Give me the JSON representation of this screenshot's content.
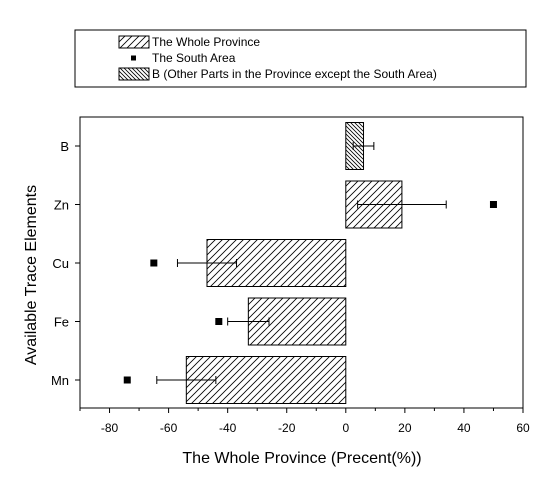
{
  "chart_data": {
    "type": "bar",
    "orientation": "horizontal",
    "categories": [
      "B",
      "Zn",
      "Cu",
      "Fe",
      "Mn"
    ],
    "xlabel": "The Whole Province (Precent(%))",
    "ylabel": "Available Trace Elements",
    "xlim": [
      -90,
      60
    ],
    "xticks": [
      -80,
      -60,
      -40,
      -20,
      0,
      20,
      40,
      60
    ],
    "grid": false,
    "legend_position": "top",
    "series": [
      {
        "name": "The Whole Province",
        "kind": "bar",
        "pattern": "diagonal-hatch",
        "values": [
          null,
          19,
          -47,
          -33,
          -54
        ],
        "error_minus": [
          null,
          15,
          10,
          7,
          10
        ],
        "error_plus": [
          null,
          15,
          10,
          7,
          10
        ]
      },
      {
        "name": "The South Area",
        "kind": "point",
        "values": [
          null,
          50,
          -65,
          -43,
          -74
        ]
      },
      {
        "name": "B (Other Parts in the Province except the South Area)",
        "kind": "bar",
        "pattern": "dense-back-diagonal-hatch",
        "values": [
          6,
          null,
          null,
          null,
          null
        ],
        "error_minus": [
          3.5,
          null,
          null,
          null,
          null
        ],
        "error_plus": [
          3.5,
          null,
          null,
          null,
          null
        ]
      }
    ]
  }
}
